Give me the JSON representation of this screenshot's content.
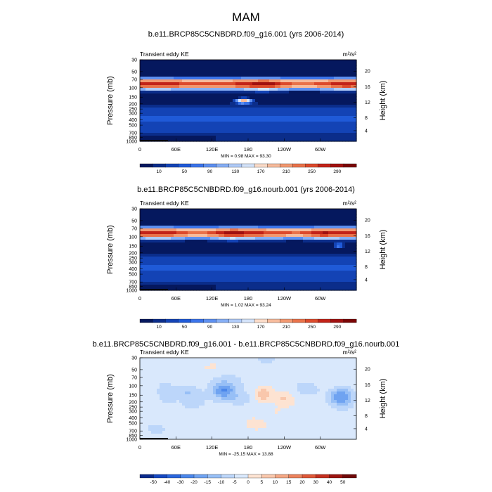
{
  "figure_title": "MAM",
  "chart_data": [
    {
      "type": "heatmap",
      "title": "b.e11.BRCP85C5CNBDRD.f09_g16.001 (yrs 2006-2014)",
      "subtitle_left": "Transient eddy KE",
      "units": "m²/s²",
      "ylabel": "Pressure (mb)",
      "ylabel_right": "Height (km)",
      "x_ticks": [
        "0",
        "60E",
        "120E",
        "180",
        "120W",
        "60W"
      ],
      "y_ticks": [
        "30",
        "50",
        "70",
        "100",
        "150",
        "200",
        "250",
        "300",
        "400",
        "500",
        "700",
        "850",
        "1000"
      ],
      "y2_ticks": [
        "20",
        "16",
        "12",
        "8",
        "4"
      ],
      "stats": "MIN =   0.98  MAX =  93.30",
      "min": 0.98,
      "max": 93.3,
      "colorbar_labels": [
        "10",
        "50",
        "90",
        "130",
        "170",
        "210",
        "250",
        "290"
      ],
      "palette": [
        "#05185e",
        "#0b2d8a",
        "#1343b5",
        "#1f5ad8",
        "#3a73ea",
        "#5d8ff0",
        "#86aef5",
        "#b0cbf8",
        "#d4e3fa",
        "#fbdbc8",
        "#f7bb9c",
        "#f29870",
        "#e9724a",
        "#dc4a2c",
        "#c22318",
        "#a0100f",
        "#7a0505"
      ],
      "field": {
        "bands": [
          [
            0.3,
            8
          ],
          [
            0.17,
            -6
          ],
          [
            0.28,
            6
          ],
          [
            0.43,
            -4
          ],
          [
            0.6,
            1
          ],
          [
            0.73,
            2
          ],
          [
            0.86,
            1
          ]
        ],
        "lons": [
          [
            0.12,
            1
          ],
          [
            0.25,
            1
          ],
          [
            0.42,
            0
          ],
          [
            0.58,
            2
          ],
          [
            0.84,
            0
          ],
          [
            0.94,
            1
          ]
        ],
        "blobs": [
          [
            0.48,
            0.5,
            0.04,
            0.035,
            12
          ]
        ],
        "bias": 1
      }
    },
    {
      "type": "heatmap",
      "title": "b.e11.BRCP85C5CNBDRD.f09_g16.nourb.001 (yrs 2006-2014)",
      "subtitle_left": "Transient eddy KE",
      "units": "m²/s²",
      "ylabel": "Pressure (mb)",
      "ylabel_right": "Height (km)",
      "x_ticks": [
        "0",
        "60E",
        "120E",
        "180",
        "120W",
        "60W"
      ],
      "y_ticks": [
        "30",
        "50",
        "70",
        "100",
        "150",
        "200",
        "250",
        "300",
        "400",
        "500",
        "700",
        "850",
        "1000"
      ],
      "y2_ticks": [
        "20",
        "16",
        "12",
        "8",
        "4"
      ],
      "stats": "MIN =   1.02  MAX =  93.24",
      "min": 1.02,
      "max": 93.24,
      "colorbar_labels": [
        "10",
        "50",
        "90",
        "130",
        "170",
        "210",
        "250",
        "290"
      ],
      "palette": [
        "#05185e",
        "#0b2d8a",
        "#1343b5",
        "#1f5ad8",
        "#3a73ea",
        "#5d8ff0",
        "#86aef5",
        "#b0cbf8",
        "#d4e3fa",
        "#fbdbc8",
        "#f7bb9c",
        "#f29870",
        "#e9724a",
        "#dc4a2c",
        "#c22318",
        "#a0100f",
        "#7a0505"
      ],
      "field": {
        "bands": [
          [
            0.3,
            8
          ],
          [
            0.17,
            -6
          ],
          [
            0.28,
            6
          ],
          [
            0.43,
            -4
          ],
          [
            0.6,
            1
          ],
          [
            0.73,
            2
          ],
          [
            0.86,
            1
          ]
        ],
        "lons": [
          [
            0.12,
            1
          ],
          [
            0.25,
            0
          ],
          [
            0.42,
            2
          ],
          [
            0.58,
            0
          ],
          [
            0.84,
            2
          ],
          [
            0.94,
            0
          ]
        ],
        "blobs": [
          [
            0.92,
            0.45,
            0.03,
            0.03,
            8
          ]
        ],
        "bias": 1
      }
    },
    {
      "type": "heatmap",
      "title": "b.e11.BRCP85C5CNBDRD.f09_g16.001 - b.e11.BRCP85C5CNBDRD.f09_g16.nourb.001",
      "subtitle_left": "Transient eddy KE",
      "units": "m²/s²",
      "ylabel": "Pressure (mb)",
      "ylabel_right": "Height (km)",
      "x_ticks": [
        "0",
        "60E",
        "120E",
        "180",
        "120W",
        "60W"
      ],
      "y_ticks": [
        "30",
        "50",
        "70",
        "100",
        "150",
        "200",
        "250",
        "300",
        "400",
        "500",
        "700",
        "850",
        "1000"
      ],
      "y2_ticks": [
        "20",
        "16",
        "12",
        "8",
        "4"
      ],
      "stats": "MIN = -25.15  MAX =  13.88",
      "min": -25.15,
      "max": 13.88,
      "colorbar_labels": [
        "-50",
        "-40",
        "-30",
        "-20",
        "-15",
        "-10",
        "-5",
        "0",
        "5",
        "10",
        "15",
        "20",
        "30",
        "40",
        "50"
      ],
      "palette": [
        "#0a2a8c",
        "#1547c0",
        "#2a66dc",
        "#4a86ea",
        "#6fa3f1",
        "#97bff6",
        "#bcd6fa",
        "#d9e8fc",
        "#fde3d2",
        "#f9c7ac",
        "#f4a784",
        "#ec825c",
        "#de5838",
        "#c42f1f",
        "#9c1410",
        "#6f0808"
      ],
      "field": {
        "diff": true,
        "blobs": [
          [
            0.12,
            0.45,
            0.04,
            0.12,
            -2.5
          ],
          [
            0.22,
            0.42,
            0.05,
            0.08,
            -3
          ],
          [
            0.385,
            0.4,
            0.05,
            0.1,
            -6.5
          ],
          [
            0.57,
            0.45,
            0.04,
            0.09,
            5.5
          ],
          [
            0.66,
            0.5,
            0.04,
            0.08,
            3.2
          ],
          [
            0.93,
            0.47,
            0.05,
            0.11,
            -6.8
          ],
          [
            0.45,
            0.5,
            0.06,
            0.09,
            -2.2
          ],
          [
            0.78,
            0.4,
            0.06,
            0.09,
            -2
          ],
          [
            0.28,
            0.72,
            0.05,
            0.07,
            1.4
          ],
          [
            0.1,
            0.75,
            0.05,
            0.06,
            1.3
          ],
          [
            0.33,
            0.12,
            0.05,
            0.06,
            1.5
          ],
          [
            0.52,
            0.8,
            0.05,
            0.08,
            1.3
          ],
          [
            0.7,
            0.2,
            0.04,
            0.07,
            1.2
          ],
          [
            0.85,
            0.68,
            0.05,
            0.06,
            1.2
          ],
          [
            0.62,
            0.65,
            0.05,
            0.07,
            1.1
          ]
        ],
        "bias": -1.2
      }
    }
  ]
}
